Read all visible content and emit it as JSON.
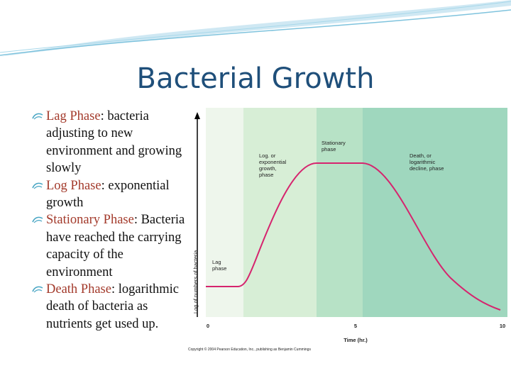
{
  "title": "Bacterial Growth",
  "bullets": [
    {
      "term": "Lag Phase",
      "text": ": bacteria adjusting to new environment and growing slowly"
    },
    {
      "term": "Log Phase",
      "text": ": exponential growth"
    },
    {
      "term": "Stationary Phase",
      "text": ": Bacteria have reached the carrying capacity of the environment"
    },
    {
      "term": "Death Phase",
      "text": ": logarithmic death of bacteria as nutrients get used up."
    }
  ],
  "figure": {
    "phases": [
      {
        "lines": [
          "Lag",
          "phase"
        ]
      },
      {
        "lines": [
          "Log. or",
          "exponential",
          "growth,",
          "phase"
        ]
      },
      {
        "lines": [
          "Stationary",
          "phase"
        ]
      },
      {
        "lines": [
          "Death, or",
          "logarithmic",
          "decline, phase"
        ]
      }
    ],
    "y_label": "Log of numbers of bacteria",
    "x_label": "Time (hr.)",
    "x_ticks": [
      0,
      5,
      10
    ],
    "credit": "Copyright © 2004 Pearson Education, Inc., publishing as Benjamin Cummings"
  }
}
